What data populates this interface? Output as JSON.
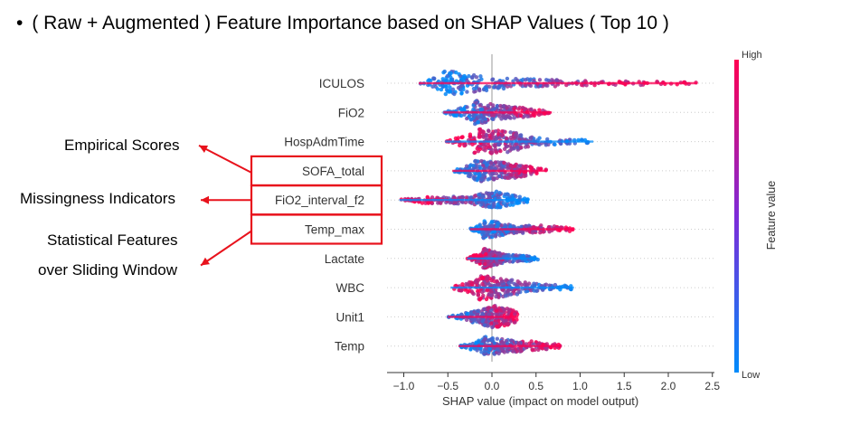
{
  "title": {
    "bullet": "•",
    "text": "( Raw + Augmented ) Feature Importance based on SHAP Values ( Top 10 )"
  },
  "annotations": [
    {
      "text": "Empirical Scores",
      "points_to": "SOFA_total"
    },
    {
      "text": "Missingness Indicators",
      "points_to": "FiO2_interval_f2"
    },
    {
      "text": "Statistical Features",
      "points_to": "Temp_max"
    },
    {
      "text": "over Sliding Window",
      "points_to": "Temp_max"
    }
  ],
  "highlight_color": "#e8121c",
  "chart_data": {
    "type": "beeswarm",
    "xlabel": "SHAP value (impact on model output)",
    "xlim": [
      -1.15,
      2.5
    ],
    "xticks": [
      -1.0,
      -0.5,
      0.0,
      0.5,
      1.0,
      1.5,
      2.0,
      2.5
    ],
    "xtick_labels": [
      "−1.0",
      "−0.5",
      "0.0",
      "0.5",
      "1.0",
      "1.5",
      "2.0",
      "2.5"
    ],
    "colorbar": {
      "label": "Feature value",
      "high": "High",
      "low": "Low",
      "low_color": "#008bfb",
      "high_color": "#ff0052"
    },
    "highlighted_features": [
      "SOFA_total",
      "FiO2_interval_f2",
      "Temp_max"
    ],
    "features": [
      {
        "name": "ICULOS",
        "min": -0.83,
        "max": 2.33,
        "low_side": "negative",
        "spread": [
          [
            -0.55,
            1.0
          ],
          [
            -0.1,
            0.6
          ],
          [
            0.3,
            0.35
          ],
          [
            1.2,
            0.18
          ],
          [
            2.0,
            0.12
          ]
        ]
      },
      {
        "name": "FiO2",
        "min": -0.55,
        "max": 0.68,
        "low_side": "negative",
        "spread": [
          [
            -0.2,
            1.0
          ],
          [
            0.05,
            0.55
          ],
          [
            0.35,
            0.4
          ],
          [
            0.6,
            0.15
          ]
        ]
      },
      {
        "name": "HospAdmTime",
        "min": -0.53,
        "max": 1.15,
        "low_side": "positive",
        "spread": [
          [
            -0.2,
            1.0
          ],
          [
            0.15,
            0.9
          ],
          [
            0.5,
            0.3
          ],
          [
            1.0,
            0.15
          ]
        ]
      },
      {
        "name": "SOFA_total",
        "min": -0.45,
        "max": 0.62,
        "low_side": "negative",
        "spread": [
          [
            -0.2,
            0.9
          ],
          [
            0.05,
            0.7
          ],
          [
            0.3,
            0.55
          ],
          [
            0.55,
            0.2
          ]
        ]
      },
      {
        "name": "FiO2_interval_f2",
        "min": -1.05,
        "max": 0.42,
        "low_side": "positive",
        "spread": [
          [
            -0.8,
            0.25
          ],
          [
            -0.3,
            0.3
          ],
          [
            0.05,
            0.7
          ],
          [
            0.3,
            0.3
          ]
        ]
      },
      {
        "name": "Temp_max",
        "min": -0.25,
        "max": 0.92,
        "low_side": "negative",
        "spread": [
          [
            -0.1,
            0.8
          ],
          [
            0.2,
            0.35
          ],
          [
            0.6,
            0.3
          ],
          [
            0.9,
            0.15
          ]
        ]
      },
      {
        "name": "Lactate",
        "min": -0.28,
        "max": 0.52,
        "low_side": "positive",
        "spread": [
          [
            -0.1,
            0.8
          ],
          [
            0.15,
            0.3
          ],
          [
            0.45,
            0.2
          ]
        ]
      },
      {
        "name": "WBC",
        "min": -0.47,
        "max": 0.93,
        "low_side": "positive",
        "spread": [
          [
            -0.15,
            1.0
          ],
          [
            0.15,
            0.7
          ],
          [
            0.5,
            0.3
          ],
          [
            0.9,
            0.15
          ]
        ]
      },
      {
        "name": "Unit1",
        "min": -0.5,
        "max": 0.3,
        "low_side": "negative",
        "spread": [
          [
            -0.3,
            0.3
          ],
          [
            0.05,
            0.9
          ],
          [
            0.25,
            0.5
          ]
        ]
      },
      {
        "name": "Temp",
        "min": -0.38,
        "max": 0.78,
        "low_side": "negative",
        "spread": [
          [
            -0.1,
            0.8
          ],
          [
            0.2,
            0.5
          ],
          [
            0.6,
            0.3
          ]
        ]
      }
    ]
  }
}
